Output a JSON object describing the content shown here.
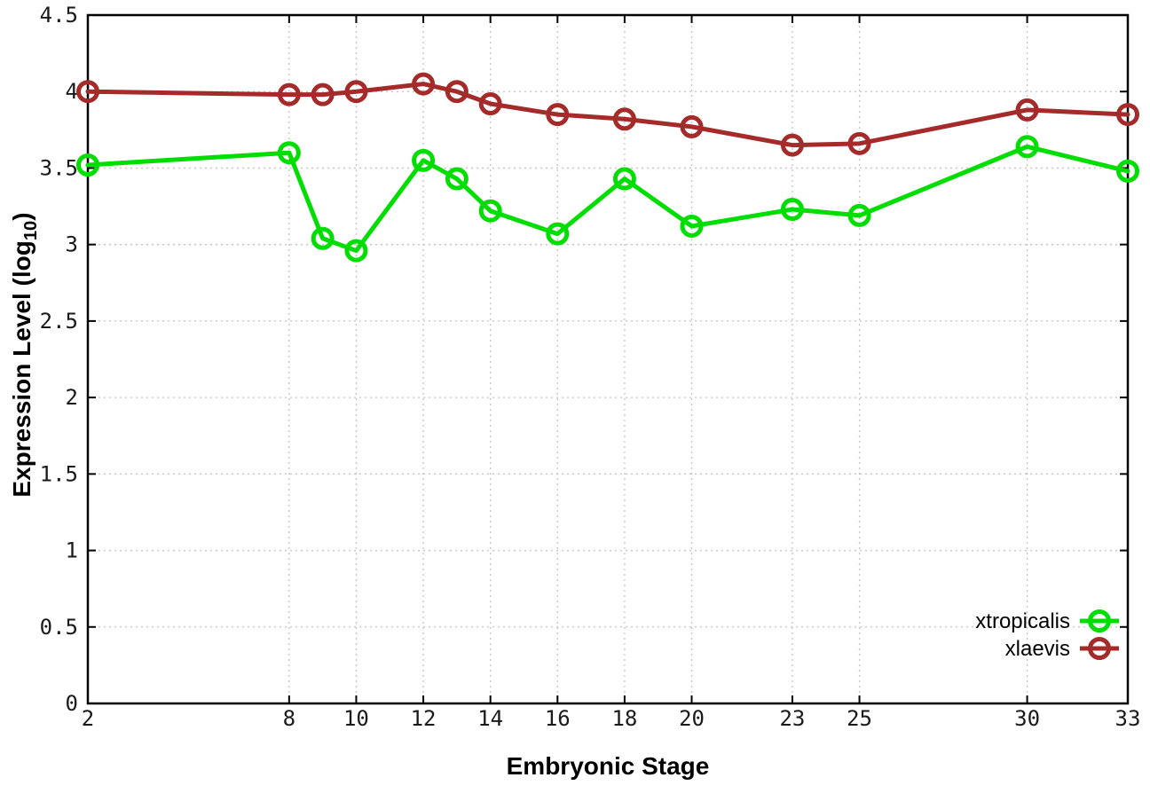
{
  "chart_data": {
    "type": "line",
    "title": "",
    "xlabel": "Embryonic Stage",
    "ylabel": {
      "text": "Expression Level (log",
      "sub": "10",
      "close": ")"
    },
    "x": [
      2,
      8,
      9,
      10,
      12,
      13,
      14,
      16,
      18,
      20,
      23,
      25,
      30,
      33
    ],
    "series": [
      {
        "name": "xtropicalis",
        "color": "#00dd00",
        "marker": "open-circle",
        "values": [
          3.52,
          3.6,
          3.04,
          2.96,
          3.55,
          3.43,
          3.22,
          3.07,
          3.43,
          3.12,
          3.23,
          3.19,
          3.64,
          3.48
        ]
      },
      {
        "name": "xlaevis",
        "color": "#a52a2a",
        "marker": "open-circle",
        "values": [
          4.0,
          3.98,
          3.98,
          4.0,
          4.05,
          4.0,
          3.92,
          3.85,
          3.82,
          3.77,
          3.65,
          3.66,
          3.88,
          3.85
        ]
      }
    ],
    "xticks": [
      2,
      8,
      10,
      12,
      14,
      16,
      18,
      20,
      23,
      25,
      30,
      33
    ],
    "yticks": [
      0,
      0.5,
      1,
      1.5,
      2,
      2.5,
      3,
      3.5,
      4,
      4.5
    ],
    "xlim": [
      2,
      33
    ],
    "ylim": [
      0,
      4.5
    ],
    "grid": true,
    "grid_style": "dotted",
    "legend_position": "bottom-right",
    "colors": {
      "background": "#ffffff",
      "border": "#000000",
      "gridline": "#c4c4c4",
      "tick_text": "#1a1a1a"
    }
  }
}
